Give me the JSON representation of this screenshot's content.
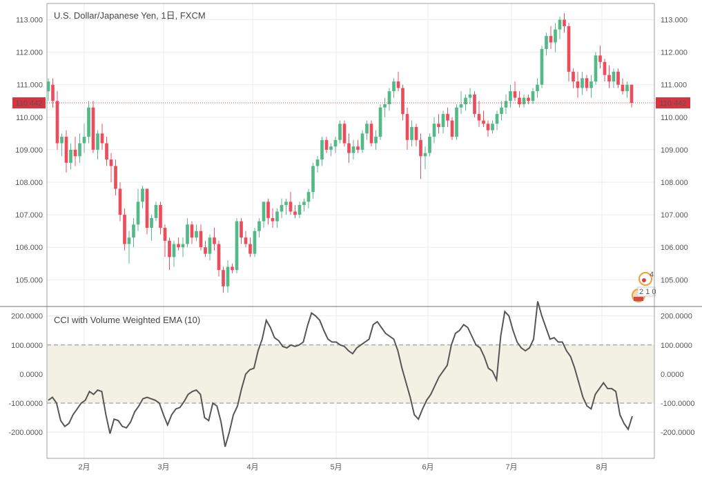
{
  "colors": {
    "up": "#53b987",
    "down": "#eb4d5c",
    "grid": "#e9ebef",
    "border": "#9aa0a6",
    "price_line": "#d6353f",
    "cci_line": "#555555",
    "band_fill": "#f2f1e4",
    "band_line": "#8c8c8c",
    "text": "#555555"
  },
  "chart_data": [
    {
      "type": "candlestick",
      "title": "U.S. Dollar/Japanese Yen, 1日, FXCM",
      "ylim": [
        104.2,
        113.5
      ],
      "y_ticks": [
        "105.000",
        "106.000",
        "107.000",
        "108.000",
        "109.000",
        "110.000",
        "111.000",
        "112.000",
        "113.000"
      ],
      "x_ticks": [
        "2月",
        "3月",
        "4月",
        "5月",
        "6月",
        "7月",
        "8月"
      ],
      "last_price": "110.442",
      "badges": [
        "4",
        "2 1 0"
      ],
      "candles": [
        {
          "o": 110.8,
          "h": 111.2,
          "l": 110.5,
          "c": 111.1
        },
        {
          "o": 111.0,
          "h": 111.2,
          "l": 110.3,
          "c": 110.5
        },
        {
          "o": 110.5,
          "h": 110.8,
          "l": 109.0,
          "c": 109.2
        },
        {
          "o": 109.2,
          "h": 109.5,
          "l": 108.8,
          "c": 109.4
        },
        {
          "o": 109.4,
          "h": 109.6,
          "l": 108.3,
          "c": 108.6
        },
        {
          "o": 108.6,
          "h": 109.2,
          "l": 108.4,
          "c": 109.0
        },
        {
          "o": 109.0,
          "h": 109.4,
          "l": 108.5,
          "c": 108.8
        },
        {
          "o": 108.8,
          "h": 109.5,
          "l": 108.6,
          "c": 109.2
        },
        {
          "o": 109.2,
          "h": 109.8,
          "l": 108.9,
          "c": 109.4
        },
        {
          "o": 109.4,
          "h": 110.5,
          "l": 109.2,
          "c": 110.3
        },
        {
          "o": 110.3,
          "h": 110.5,
          "l": 108.9,
          "c": 109.0
        },
        {
          "o": 109.0,
          "h": 109.6,
          "l": 108.7,
          "c": 109.5
        },
        {
          "o": 109.5,
          "h": 109.8,
          "l": 109.0,
          "c": 109.2
        },
        {
          "o": 109.2,
          "h": 109.4,
          "l": 108.5,
          "c": 108.7
        },
        {
          "o": 108.7,
          "h": 108.9,
          "l": 108.0,
          "c": 108.5
        },
        {
          "o": 108.5,
          "h": 108.7,
          "l": 107.6,
          "c": 107.8
        },
        {
          "o": 107.8,
          "h": 108.0,
          "l": 106.8,
          "c": 107.0
        },
        {
          "o": 107.0,
          "h": 107.2,
          "l": 105.9,
          "c": 106.1
        },
        {
          "o": 106.1,
          "h": 106.5,
          "l": 105.5,
          "c": 106.3
        },
        {
          "o": 106.3,
          "h": 106.9,
          "l": 106.0,
          "c": 106.7
        },
        {
          "o": 106.7,
          "h": 107.8,
          "l": 106.5,
          "c": 107.4
        },
        {
          "o": 107.4,
          "h": 107.9,
          "l": 107.2,
          "c": 107.8
        },
        {
          "o": 107.8,
          "h": 107.8,
          "l": 106.4,
          "c": 106.6
        },
        {
          "o": 106.6,
          "h": 107.0,
          "l": 106.2,
          "c": 106.9
        },
        {
          "o": 106.9,
          "h": 107.4,
          "l": 106.8,
          "c": 107.3
        },
        {
          "o": 107.3,
          "h": 107.4,
          "l": 106.4,
          "c": 106.6
        },
        {
          "o": 106.6,
          "h": 106.7,
          "l": 105.7,
          "c": 106.2
        },
        {
          "o": 106.2,
          "h": 106.3,
          "l": 105.3,
          "c": 105.7
        },
        {
          "o": 105.7,
          "h": 106.2,
          "l": 105.4,
          "c": 106.1
        },
        {
          "o": 106.1,
          "h": 106.3,
          "l": 105.9,
          "c": 106.0
        },
        {
          "o": 106.0,
          "h": 106.3,
          "l": 105.7,
          "c": 106.1
        },
        {
          "o": 106.1,
          "h": 106.9,
          "l": 106.0,
          "c": 106.7
        },
        {
          "o": 106.7,
          "h": 106.8,
          "l": 106.1,
          "c": 106.3
        },
        {
          "o": 106.3,
          "h": 106.7,
          "l": 106.2,
          "c": 106.5
        },
        {
          "o": 106.5,
          "h": 106.7,
          "l": 105.9,
          "c": 106.0
        },
        {
          "o": 106.0,
          "h": 106.2,
          "l": 105.7,
          "c": 105.8
        },
        {
          "o": 105.8,
          "h": 106.4,
          "l": 105.6,
          "c": 106.3
        },
        {
          "o": 106.3,
          "h": 106.6,
          "l": 105.9,
          "c": 106.1
        },
        {
          "o": 106.1,
          "h": 106.2,
          "l": 105.1,
          "c": 105.3
        },
        {
          "o": 105.3,
          "h": 105.4,
          "l": 104.6,
          "c": 104.8
        },
        {
          "o": 104.8,
          "h": 105.6,
          "l": 104.6,
          "c": 105.4
        },
        {
          "o": 105.4,
          "h": 105.5,
          "l": 105.2,
          "c": 105.3
        },
        {
          "o": 105.3,
          "h": 106.9,
          "l": 105.2,
          "c": 106.8
        },
        {
          "o": 106.8,
          "h": 106.9,
          "l": 106.1,
          "c": 106.3
        },
        {
          "o": 106.3,
          "h": 106.5,
          "l": 106.0,
          "c": 106.1
        },
        {
          "o": 106.1,
          "h": 106.3,
          "l": 105.7,
          "c": 105.8
        },
        {
          "o": 105.8,
          "h": 106.6,
          "l": 105.7,
          "c": 106.5
        },
        {
          "o": 106.5,
          "h": 106.9,
          "l": 106.3,
          "c": 106.8
        },
        {
          "o": 106.8,
          "h": 107.4,
          "l": 106.6,
          "c": 107.4
        },
        {
          "o": 107.4,
          "h": 107.5,
          "l": 106.7,
          "c": 106.9
        },
        {
          "o": 106.9,
          "h": 107.2,
          "l": 106.6,
          "c": 106.8
        },
        {
          "o": 106.8,
          "h": 107.2,
          "l": 106.6,
          "c": 107.1
        },
        {
          "o": 107.1,
          "h": 107.5,
          "l": 106.9,
          "c": 107.3
        },
        {
          "o": 107.3,
          "h": 107.5,
          "l": 107.0,
          "c": 107.4
        },
        {
          "o": 107.4,
          "h": 107.7,
          "l": 107.0,
          "c": 107.1
        },
        {
          "o": 107.1,
          "h": 107.3,
          "l": 106.9,
          "c": 107.0
        },
        {
          "o": 107.0,
          "h": 107.4,
          "l": 106.9,
          "c": 107.3
        },
        {
          "o": 107.3,
          "h": 107.5,
          "l": 107.1,
          "c": 107.4
        },
        {
          "o": 107.4,
          "h": 107.8,
          "l": 107.2,
          "c": 107.7
        },
        {
          "o": 107.7,
          "h": 108.6,
          "l": 107.5,
          "c": 108.5
        },
        {
          "o": 108.5,
          "h": 108.8,
          "l": 108.3,
          "c": 108.7
        },
        {
          "o": 108.7,
          "h": 109.4,
          "l": 108.5,
          "c": 109.3
        },
        {
          "o": 109.3,
          "h": 109.4,
          "l": 108.9,
          "c": 109.0
        },
        {
          "o": 109.0,
          "h": 109.2,
          "l": 108.8,
          "c": 109.1
        },
        {
          "o": 109.1,
          "h": 109.4,
          "l": 108.9,
          "c": 109.3
        },
        {
          "o": 109.3,
          "h": 109.9,
          "l": 109.2,
          "c": 109.8
        },
        {
          "o": 109.8,
          "h": 109.9,
          "l": 109.1,
          "c": 109.2
        },
        {
          "o": 109.2,
          "h": 109.5,
          "l": 108.6,
          "c": 108.9
        },
        {
          "o": 108.9,
          "h": 109.3,
          "l": 108.7,
          "c": 109.1
        },
        {
          "o": 109.1,
          "h": 109.3,
          "l": 108.9,
          "c": 109.0
        },
        {
          "o": 109.0,
          "h": 109.6,
          "l": 108.9,
          "c": 109.5
        },
        {
          "o": 109.5,
          "h": 109.9,
          "l": 109.3,
          "c": 109.8
        },
        {
          "o": 109.8,
          "h": 109.9,
          "l": 109.1,
          "c": 109.2
        },
        {
          "o": 109.2,
          "h": 109.6,
          "l": 109.0,
          "c": 109.4
        },
        {
          "o": 109.4,
          "h": 110.4,
          "l": 109.3,
          "c": 110.3
        },
        {
          "o": 110.3,
          "h": 110.6,
          "l": 110.0,
          "c": 110.4
        },
        {
          "o": 110.4,
          "h": 110.9,
          "l": 110.2,
          "c": 110.8
        },
        {
          "o": 110.8,
          "h": 111.2,
          "l": 110.6,
          "c": 111.1
        },
        {
          "o": 111.1,
          "h": 111.4,
          "l": 110.8,
          "c": 110.9
        },
        {
          "o": 110.9,
          "h": 111.0,
          "l": 109.9,
          "c": 110.1
        },
        {
          "o": 110.1,
          "h": 110.3,
          "l": 109.0,
          "c": 109.3
        },
        {
          "o": 109.3,
          "h": 109.9,
          "l": 109.1,
          "c": 109.7
        },
        {
          "o": 109.7,
          "h": 109.8,
          "l": 109.1,
          "c": 109.3
        },
        {
          "o": 109.3,
          "h": 109.5,
          "l": 108.1,
          "c": 108.8
        },
        {
          "o": 108.8,
          "h": 109.1,
          "l": 108.4,
          "c": 108.9
        },
        {
          "o": 108.9,
          "h": 109.5,
          "l": 108.8,
          "c": 109.4
        },
        {
          "o": 109.4,
          "h": 110.0,
          "l": 109.2,
          "c": 109.8
        },
        {
          "o": 109.8,
          "h": 110.1,
          "l": 109.5,
          "c": 109.7
        },
        {
          "o": 109.7,
          "h": 110.2,
          "l": 109.5,
          "c": 110.1
        },
        {
          "o": 110.1,
          "h": 110.3,
          "l": 109.7,
          "c": 109.9
        },
        {
          "o": 109.9,
          "h": 110.0,
          "l": 109.3,
          "c": 109.4
        },
        {
          "o": 109.4,
          "h": 110.4,
          "l": 109.3,
          "c": 110.3
        },
        {
          "o": 110.3,
          "h": 110.8,
          "l": 110.1,
          "c": 110.4
        },
        {
          "o": 110.4,
          "h": 110.7,
          "l": 110.2,
          "c": 110.6
        },
        {
          "o": 110.6,
          "h": 110.9,
          "l": 110.4,
          "c": 110.7
        },
        {
          "o": 110.7,
          "h": 110.8,
          "l": 110.0,
          "c": 110.1
        },
        {
          "o": 110.1,
          "h": 110.5,
          "l": 109.7,
          "c": 109.9
        },
        {
          "o": 109.9,
          "h": 110.2,
          "l": 109.7,
          "c": 109.8
        },
        {
          "o": 109.8,
          "h": 109.9,
          "l": 109.4,
          "c": 109.6
        },
        {
          "o": 109.6,
          "h": 109.9,
          "l": 109.5,
          "c": 109.8
        },
        {
          "o": 109.8,
          "h": 110.2,
          "l": 109.6,
          "c": 110.1
        },
        {
          "o": 110.1,
          "h": 110.5,
          "l": 109.9,
          "c": 110.3
        },
        {
          "o": 110.3,
          "h": 110.7,
          "l": 110.1,
          "c": 110.5
        },
        {
          "o": 110.5,
          "h": 111.0,
          "l": 110.3,
          "c": 110.8
        },
        {
          "o": 110.8,
          "h": 111.1,
          "l": 110.5,
          "c": 110.6
        },
        {
          "o": 110.6,
          "h": 110.8,
          "l": 110.3,
          "c": 110.4
        },
        {
          "o": 110.4,
          "h": 110.7,
          "l": 110.3,
          "c": 110.6
        },
        {
          "o": 110.6,
          "h": 110.7,
          "l": 110.4,
          "c": 110.5
        },
        {
          "o": 110.5,
          "h": 110.9,
          "l": 110.4,
          "c": 110.8
        },
        {
          "o": 110.8,
          "h": 111.2,
          "l": 110.6,
          "c": 111.0
        },
        {
          "o": 111.0,
          "h": 112.2,
          "l": 110.9,
          "c": 112.1
        },
        {
          "o": 112.1,
          "h": 112.6,
          "l": 111.9,
          "c": 112.5
        },
        {
          "o": 112.5,
          "h": 112.8,
          "l": 112.1,
          "c": 112.3
        },
        {
          "o": 112.3,
          "h": 112.9,
          "l": 112.0,
          "c": 112.7
        },
        {
          "o": 112.7,
          "h": 113.1,
          "l": 112.4,
          "c": 113.0
        },
        {
          "o": 113.0,
          "h": 113.2,
          "l": 112.6,
          "c": 112.8
        },
        {
          "o": 112.8,
          "h": 112.9,
          "l": 111.1,
          "c": 111.4
        },
        {
          "o": 111.4,
          "h": 111.5,
          "l": 110.9,
          "c": 111.1
        },
        {
          "o": 111.1,
          "h": 111.4,
          "l": 110.6,
          "c": 110.9
        },
        {
          "o": 110.9,
          "h": 111.4,
          "l": 110.7,
          "c": 111.2
        },
        {
          "o": 111.2,
          "h": 111.3,
          "l": 110.8,
          "c": 110.9
        },
        {
          "o": 110.9,
          "h": 111.3,
          "l": 110.6,
          "c": 111.1
        },
        {
          "o": 111.1,
          "h": 112.0,
          "l": 111.0,
          "c": 111.9
        },
        {
          "o": 111.9,
          "h": 112.2,
          "l": 111.5,
          "c": 111.7
        },
        {
          "o": 111.7,
          "h": 111.8,
          "l": 111.1,
          "c": 111.3
        },
        {
          "o": 111.3,
          "h": 111.6,
          "l": 110.9,
          "c": 111.1
        },
        {
          "o": 111.1,
          "h": 111.5,
          "l": 110.9,
          "c": 111.4
        },
        {
          "o": 111.4,
          "h": 111.5,
          "l": 110.9,
          "c": 111.0
        },
        {
          "o": 111.0,
          "h": 111.2,
          "l": 110.7,
          "c": 110.8
        },
        {
          "o": 110.8,
          "h": 111.1,
          "l": 110.6,
          "c": 111.0
        },
        {
          "o": 111.0,
          "h": 111.0,
          "l": 110.3,
          "c": 110.44
        }
      ]
    },
    {
      "type": "line",
      "title": "CCI with Volume Weighted EMA  (10)",
      "ylim": [
        -290,
        230
      ],
      "y_ticks": [
        "200.0000",
        "100.0000",
        "0.0000",
        "-100.0000",
        "-200.0000"
      ],
      "band": [
        -100,
        100
      ],
      "values": [
        -90,
        -80,
        -100,
        -160,
        -180,
        -170,
        -140,
        -120,
        -100,
        -90,
        -60,
        -70,
        -55,
        -60,
        -140,
        -205,
        -155,
        -160,
        -180,
        -185,
        -165,
        -130,
        -110,
        -85,
        -80,
        -85,
        -90,
        -100,
        -140,
        -175,
        -140,
        -120,
        -115,
        -95,
        -70,
        -60,
        -55,
        -70,
        -150,
        -160,
        -100,
        -110,
        -165,
        -250,
        -200,
        -140,
        -110,
        -50,
        0,
        15,
        20,
        80,
        120,
        185,
        160,
        125,
        115,
        95,
        90,
        100,
        95,
        100,
        110,
        165,
        210,
        200,
        185,
        150,
        120,
        110,
        110,
        100,
        95,
        80,
        70,
        90,
        100,
        110,
        120,
        170,
        180,
        160,
        140,
        130,
        120,
        80,
        20,
        -30,
        -80,
        -140,
        -155,
        -120,
        -90,
        -70,
        -40,
        -10,
        10,
        30,
        100,
        140,
        150,
        170,
        160,
        130,
        100,
        90,
        60,
        20,
        10,
        -20,
        130,
        215,
        200,
        150,
        110,
        90,
        80,
        90,
        120,
        250,
        200,
        160,
        120,
        125,
        110,
        110,
        80,
        60,
        20,
        -30,
        -80,
        -110,
        -120,
        -70,
        -50,
        -30,
        -50,
        -50,
        -60,
        -140,
        -170,
        -190,
        -145
      ]
    }
  ]
}
